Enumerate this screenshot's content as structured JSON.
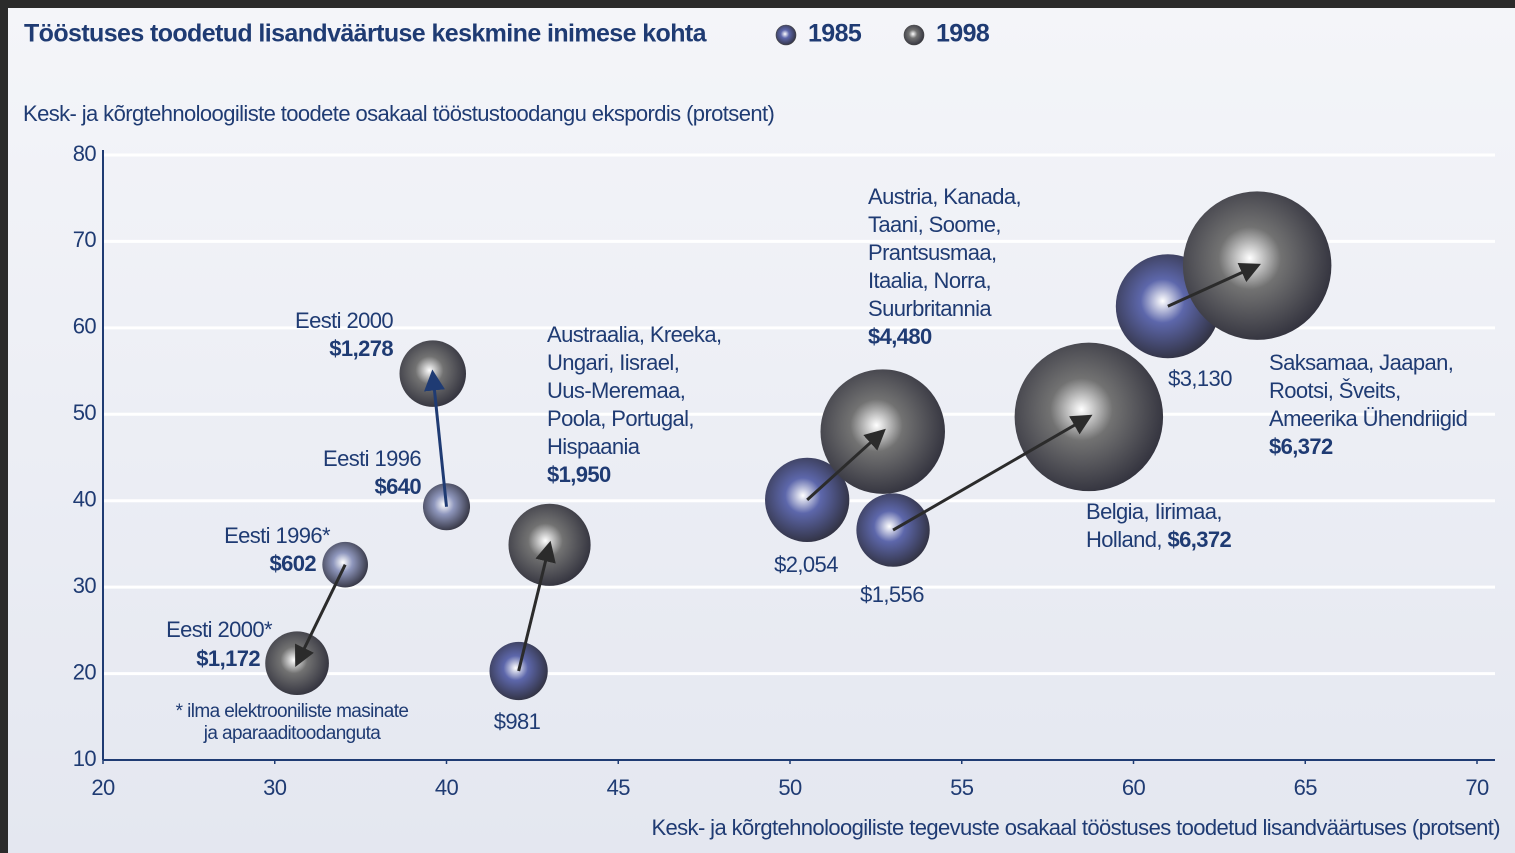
{
  "chart_data": {
    "type": "bubble",
    "title": "Tööstuses toodetud lisandväärtuse keskmine inimese kohta",
    "legend": [
      {
        "name": "1985",
        "color": "#5d67ab"
      },
      {
        "name": "1998",
        "color": "#727272"
      }
    ],
    "y_label": "Kesk- ja kõrgtehnoloogiliste toodete osakaal tööstustoodangu ekspordis (protsent)",
    "x_label": "Kesk- ja kõrgtehnoloogiliste tegevuste osakaal tööstuses toodetud lisandväärtuses (protsent)",
    "xlim": [
      20,
      70
    ],
    "xticks": [
      20,
      30,
      40,
      45,
      50,
      55,
      60,
      65,
      70
    ],
    "ylim": [
      10,
      80
    ],
    "yticks": [
      10,
      20,
      30,
      40,
      50,
      60,
      70,
      80
    ],
    "grid": true,
    "footnote": [
      "* ilma elektrooniliste masinate",
      "ja aparaaditoodanguta"
    ],
    "groups": [
      {
        "from": {
          "name": [
            "Eesti 1996*"
          ],
          "x": 34.1,
          "y": 32.6,
          "size": 602,
          "value_label": "$602",
          "color": "#8f97bd"
        },
        "to": {
          "name": [
            "Eesti 2000*"
          ],
          "x": 31.3,
          "y": 21.2,
          "size": 1172,
          "value_label": "$1,172",
          "color": "#727272"
        },
        "arrow_color": "#2b2b2b"
      },
      {
        "from": {
          "name": [
            "Eesti 1996"
          ],
          "x": 40.0,
          "y": 39.3,
          "size": 640,
          "value_label": "$640",
          "color": "#8f97bd"
        },
        "to": {
          "name": [
            "Eesti 2000"
          ],
          "x": 39.2,
          "y": 54.7,
          "size": 1278,
          "value_label": "$1,278",
          "color": "#727272"
        },
        "arrow_color": "#1f3b73"
      },
      {
        "names": [
          "Austraalia, Kreeka,",
          "Ungari, Iisrael,",
          "Uus-Meremaa,",
          "Poola, Portugal,",
          "Hispaania"
        ],
        "from": {
          "x": 42.1,
          "y": 20.3,
          "size": 981,
          "value_label": "$981",
          "color": "#5d67ab"
        },
        "to": {
          "x": 43.0,
          "y": 34.9,
          "size": 1950,
          "value_label": "$1,950",
          "color": "#727272"
        },
        "arrow_color": "#2b2b2b"
      },
      {
        "names": [
          "Austria, Kanada,",
          "Taani, Soome,",
          "Prantsusmaa,",
          "Itaalia, Norra,",
          "Suurbritannia"
        ],
        "from": {
          "x": 50.5,
          "y": 40.1,
          "size": 2054,
          "value_label": "$2,054",
          "color": "#5d67ab"
        },
        "to": {
          "x": 52.7,
          "y": 48.0,
          "size": 4480,
          "value_label": "$4,480",
          "color": "#727272"
        },
        "arrow_color": "#2b2b2b"
      },
      {
        "names": [
          "Belgia, Iirimaa,",
          "Holland,"
        ],
        "from": {
          "x": 53.0,
          "y": 36.6,
          "size": 1556,
          "value_label": "$1,556",
          "color": "#5d67ab"
        },
        "to": {
          "x": 58.7,
          "y": 49.7,
          "size": 6372,
          "value_label": "$6,372",
          "color": "#727272"
        },
        "arrow_color": "#2b2b2b"
      },
      {
        "names": [
          "Saksamaa, Jaapan,",
          "Rootsi, Šveits,",
          "Ameerika Ühendriigid"
        ],
        "from": {
          "x": 61.0,
          "y": 62.5,
          "size": 3130,
          "value_label": "$3,130",
          "color": "#5d67ab"
        },
        "to": {
          "x": 63.6,
          "y": 67.2,
          "size": 6372,
          "value_label": "$6,372",
          "color": "#727272"
        },
        "arrow_color": "#2b2b2b"
      }
    ]
  }
}
